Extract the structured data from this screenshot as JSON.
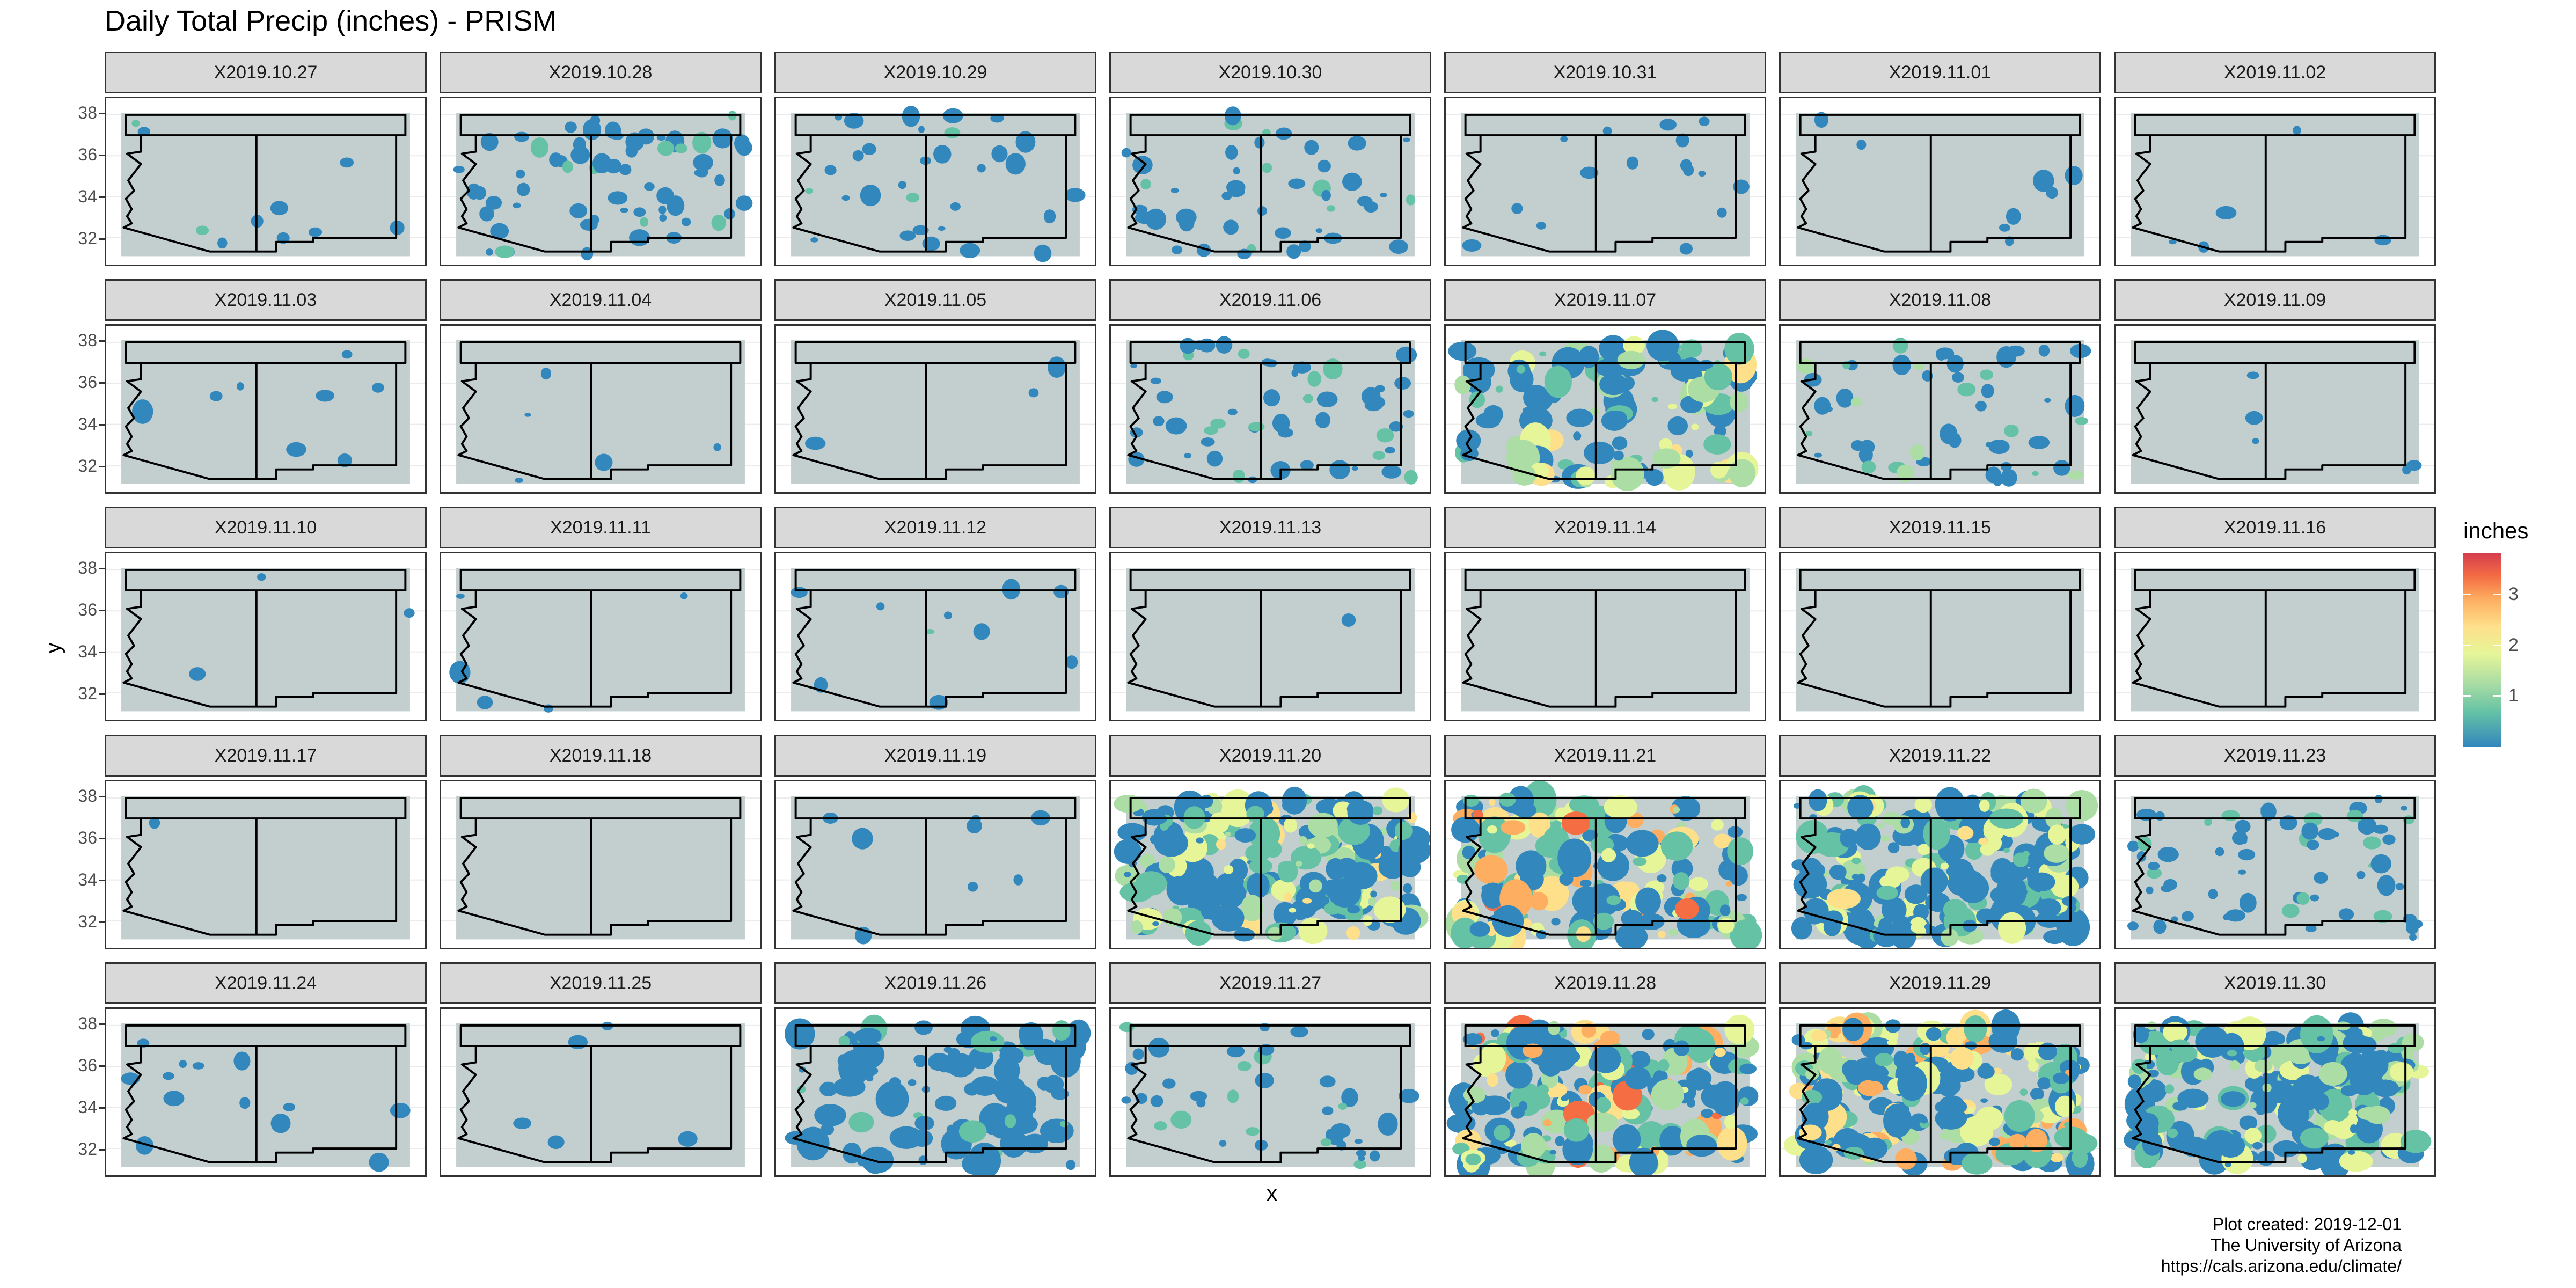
{
  "chart_data": {
    "type": "heatmap",
    "title": "Daily Total Precip (inches) - PRISM",
    "xlabel": "x",
    "ylabel": "y",
    "y_ticks": [
      "38",
      "36",
      "34",
      "32"
    ],
    "ylim": [
      31,
      38.5
    ],
    "legend": {
      "title": "inches",
      "ticks": [
        "1",
        "2",
        "3"
      ],
      "range": [
        0,
        3.8
      ],
      "placement": "right",
      "colors": [
        "#3288bd",
        "#66c2a5",
        "#abdda4",
        "#e6f598",
        "#fee08b",
        "#fdae61",
        "#f46d43",
        "#d53e4f"
      ]
    },
    "facet_layout": {
      "rows": 5,
      "cols": 7
    },
    "facets": [
      {
        "label": "X2019.10.27",
        "coverage": 0.04,
        "max_inches": 0.6
      },
      {
        "label": "X2019.10.28",
        "coverage": 0.25,
        "max_inches": 0.9
      },
      {
        "label": "X2019.10.29",
        "coverage": 0.12,
        "max_inches": 0.8
      },
      {
        "label": "X2019.10.30",
        "coverage": 0.18,
        "max_inches": 0.8
      },
      {
        "label": "X2019.10.31",
        "coverage": 0.06,
        "max_inches": 0.6
      },
      {
        "label": "X2019.11.01",
        "coverage": 0.03,
        "max_inches": 0.5
      },
      {
        "label": "X2019.11.02",
        "coverage": 0.02,
        "max_inches": 0.5
      },
      {
        "label": "X2019.11.03",
        "coverage": 0.03,
        "max_inches": 0.6
      },
      {
        "label": "X2019.11.04",
        "coverage": 0.02,
        "max_inches": 0.5
      },
      {
        "label": "X2019.11.05",
        "coverage": 0.01,
        "max_inches": 0.4
      },
      {
        "label": "X2019.11.06",
        "coverage": 0.2,
        "max_inches": 0.9
      },
      {
        "label": "X2019.11.07",
        "coverage": 0.45,
        "max_inches": 2.5
      },
      {
        "label": "X2019.11.08",
        "coverage": 0.2,
        "max_inches": 1.5
      },
      {
        "label": "X2019.11.09",
        "coverage": 0.02,
        "max_inches": 0.5
      },
      {
        "label": "X2019.11.10",
        "coverage": 0.01,
        "max_inches": 0.4
      },
      {
        "label": "X2019.11.11",
        "coverage": 0.02,
        "max_inches": 0.5
      },
      {
        "label": "X2019.11.12",
        "coverage": 0.04,
        "max_inches": 0.6
      },
      {
        "label": "X2019.11.13",
        "coverage": 0.005,
        "max_inches": 0.3
      },
      {
        "label": "X2019.11.14",
        "coverage": 0.0,
        "max_inches": 0.0
      },
      {
        "label": "X2019.11.15",
        "coverage": 0.0,
        "max_inches": 0.0
      },
      {
        "label": "X2019.11.16",
        "coverage": 0.0,
        "max_inches": 0.0
      },
      {
        "label": "X2019.11.17",
        "coverage": 0.005,
        "max_inches": 0.3
      },
      {
        "label": "X2019.11.18",
        "coverage": 0.0,
        "max_inches": 0.0
      },
      {
        "label": "X2019.11.19",
        "coverage": 0.03,
        "max_inches": 0.5
      },
      {
        "label": "X2019.11.20",
        "coverage": 0.8,
        "max_inches": 2.6
      },
      {
        "label": "X2019.11.21",
        "coverage": 0.75,
        "max_inches": 3.5
      },
      {
        "label": "X2019.11.22",
        "coverage": 0.8,
        "max_inches": 2.3
      },
      {
        "label": "X2019.11.23",
        "coverage": 0.25,
        "max_inches": 1.2
      },
      {
        "label": "X2019.11.24",
        "coverage": 0.05,
        "max_inches": 0.6
      },
      {
        "label": "X2019.11.25",
        "coverage": 0.02,
        "max_inches": 0.5
      },
      {
        "label": "X2019.11.26",
        "coverage": 0.4,
        "max_inches": 0.9
      },
      {
        "label": "X2019.11.27",
        "coverage": 0.15,
        "max_inches": 0.8
      },
      {
        "label": "X2019.11.28",
        "coverage": 0.7,
        "max_inches": 3.8
      },
      {
        "label": "X2019.11.29",
        "coverage": 0.85,
        "max_inches": 3.2
      },
      {
        "label": "X2019.11.30",
        "coverage": 0.85,
        "max_inches": 2.2
      }
    ]
  },
  "caption": {
    "line1": "Plot created: 2019-12-01",
    "line2": "The University of Arizona",
    "line3": "https://cals.arizona.edu/climate/"
  }
}
